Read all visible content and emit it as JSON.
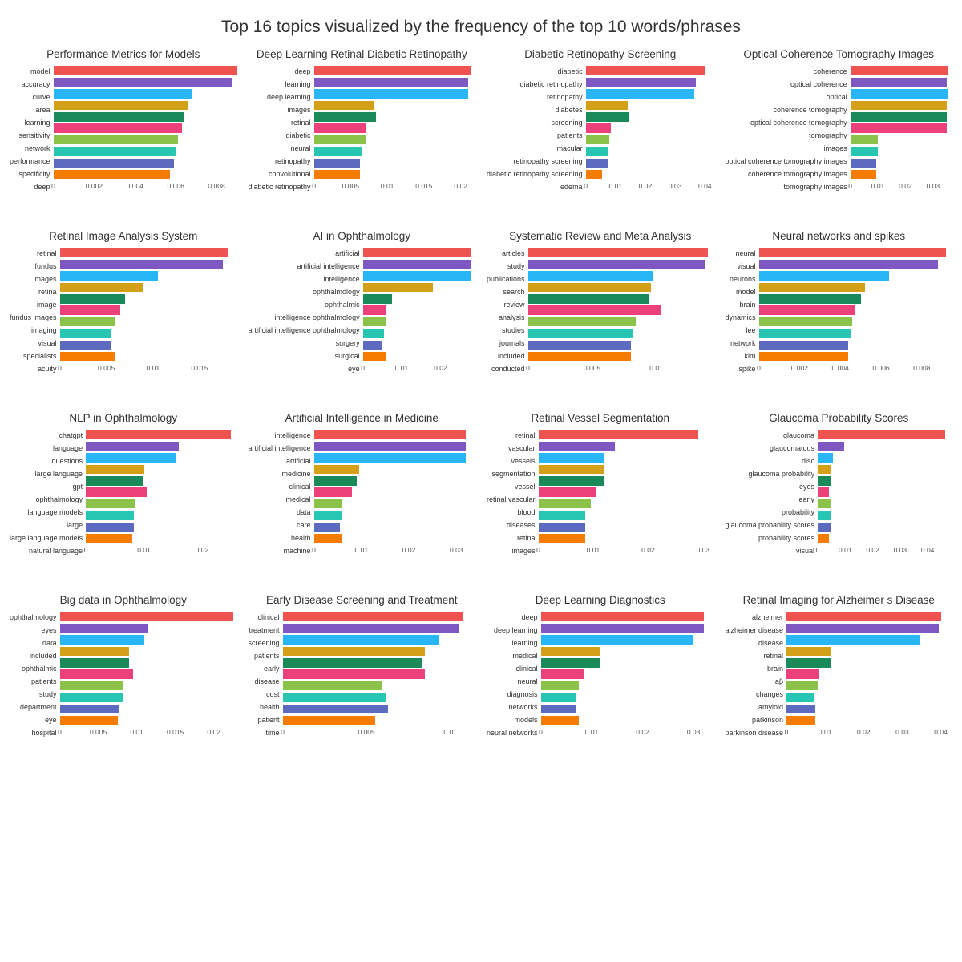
{
  "main_title": "Top 16 topics visualized by the frequency of the top 10 words/phrases",
  "bar_colors": [
    "#ef5350",
    "#7e57c2",
    "#29b6f6",
    "#d4a017",
    "#1b8a5a",
    "#ec407a",
    "#8bc34a",
    "#26c6b2",
    "#5c6bc0",
    "#f57c00"
  ],
  "title_fontsize": 21,
  "panel_title_fontsize": 13.5,
  "ylabel_fontsize": 9,
  "xtick_fontsize": 8.5,
  "background_color": "#ffffff",
  "text_color": "#333333",
  "axis_tick_color": "#555555",
  "grid_columns": 4,
  "grid_rows": 4,
  "panels": [
    {
      "title": "Performance Metrics for Models",
      "xmax": 0.009,
      "xtick_values": [
        0,
        0.002,
        0.004,
        0.006,
        0.008
      ],
      "xtick_labels": [
        "0",
        "0.002",
        "0.004",
        "0.006",
        "0.008"
      ],
      "labels": [
        "model",
        "accuracy",
        "curve",
        "area",
        "learning",
        "sensitivity",
        "network",
        "performance",
        "specificity",
        "deep"
      ],
      "values": [
        0.009,
        0.0088,
        0.0068,
        0.0066,
        0.0064,
        0.0063,
        0.0061,
        0.006,
        0.0059,
        0.0057
      ]
    },
    {
      "title": "Deep Learning Retinal Diabetic Retinopathy",
      "xmax": 0.022,
      "xtick_values": [
        0,
        0.005,
        0.01,
        0.015,
        0.02
      ],
      "xtick_labels": [
        "0",
        "0.005",
        "0.01",
        "0.015",
        "0.02"
      ],
      "labels": [
        "deep",
        "learning",
        "deep learning",
        "images",
        "retinal",
        "diabetic",
        "neural",
        "retinopathy",
        "convolutional",
        "diabetic retinopathy"
      ],
      "values": [
        0.0215,
        0.021,
        0.021,
        0.0082,
        0.0085,
        0.0072,
        0.007,
        0.0065,
        0.0063,
        0.0063
      ]
    },
    {
      "title": "Diabetic Retinopathy Screening",
      "xmax": 0.043,
      "xtick_values": [
        0,
        0.01,
        0.02,
        0.03,
        0.04
      ],
      "xtick_labels": [
        "0",
        "0.01",
        "0.02",
        "0.03",
        "0.04"
      ],
      "labels": [
        "diabetic",
        "diabetic retinopathy",
        "retinopathy",
        "diabetes",
        "screening",
        "patients",
        "macular",
        "retinopathy screening",
        "diabetic retinopathy screening",
        "edema"
      ],
      "values": [
        0.04,
        0.037,
        0.0365,
        0.014,
        0.0145,
        0.0085,
        0.008,
        0.0075,
        0.0075,
        0.0055
      ]
    },
    {
      "title": "Optical Coherence Tomography Images",
      "xmax": 0.037,
      "xtick_values": [
        0,
        0.01,
        0.02,
        0.03
      ],
      "xtick_labels": [
        "0",
        "0.01",
        "0.02",
        "0.03"
      ],
      "labels": [
        "coherence",
        "optical coherence",
        "optical",
        "coherence tomography",
        "optical coherence tomography",
        "tomography",
        "images",
        "optical coherence tomography images",
        "coherence tomography images",
        "tomography images"
      ],
      "values": [
        0.0355,
        0.035,
        0.0352,
        0.035,
        0.035,
        0.035,
        0.01,
        0.01,
        0.0095,
        0.0095
      ]
    },
    {
      "title": "Retinal Image Analysis System",
      "xmax": 0.019,
      "xtick_values": [
        0,
        0.005,
        0.01,
        0.015
      ],
      "xtick_labels": [
        "0",
        "0.005",
        "0.01",
        "0.015"
      ],
      "labels": [
        "retinal",
        "fundus",
        "images",
        "retina",
        "image",
        "fundus images",
        "imaging",
        "visual",
        "specialists",
        "acuity"
      ],
      "values": [
        0.018,
        0.0175,
        0.0105,
        0.009,
        0.007,
        0.0065,
        0.006,
        0.0055,
        0.0055,
        0.006
      ]
    },
    {
      "title": "AI in Ophthalmology",
      "xmax": 0.029,
      "xtick_values": [
        0,
        0.01,
        0.02
      ],
      "xtick_labels": [
        "0",
        "0.01",
        "0.02"
      ],
      "labels": [
        "artificial",
        "artificial intelligence",
        "intelligence",
        "ophthalmology",
        "ophthalmic",
        "intelligence ophthalmology",
        "artificial intelligence ophthalmology",
        "surgery",
        "surgical",
        "eye"
      ],
      "values": [
        0.028,
        0.0278,
        0.0278,
        0.018,
        0.0075,
        0.006,
        0.0058,
        0.0055,
        0.005,
        0.0058
      ]
    },
    {
      "title": "Systematic Review and Meta Analysis",
      "xmax": 0.0145,
      "xtick_values": [
        0,
        0.005,
        0.01
      ],
      "xtick_labels": [
        "0",
        "0.005",
        "0.01"
      ],
      "labels": [
        "articles",
        "study",
        "publications",
        "search",
        "review",
        "analysis",
        "studies",
        "journals",
        "included",
        "conducted"
      ],
      "values": [
        0.014,
        0.0138,
        0.0098,
        0.0096,
        0.0094,
        0.0104,
        0.0084,
        0.0082,
        0.008,
        0.008
      ]
    },
    {
      "title": "Neural networks and spikes",
      "xmax": 0.0095,
      "xtick_values": [
        0,
        0.002,
        0.004,
        0.006,
        0.008
      ],
      "xtick_labels": [
        "0",
        "0.002",
        "0.004",
        "0.006",
        "0.008"
      ],
      "labels": [
        "neural",
        "visual",
        "neurons",
        "model",
        "brain",
        "dynamics",
        "lee",
        "network",
        "kim",
        "spike"
      ],
      "values": [
        0.0092,
        0.0088,
        0.0064,
        0.0052,
        0.005,
        0.0047,
        0.0046,
        0.0045,
        0.0044,
        0.0044
      ]
    },
    {
      "title": "NLP in Ophthalmology",
      "xmax": 0.026,
      "xtick_values": [
        0,
        0.01,
        0.02
      ],
      "xtick_labels": [
        "0",
        "0.01",
        "0.02"
      ],
      "labels": [
        "chatgpt",
        "language",
        "questions",
        "large language",
        "gpt",
        "ophthalmology",
        "language models",
        "large",
        "large language models",
        "natural language"
      ],
      "values": [
        0.025,
        0.016,
        0.0155,
        0.01,
        0.0098,
        0.0105,
        0.0085,
        0.0082,
        0.0082,
        0.008
      ]
    },
    {
      "title": "Artificial Intelligence in Medicine",
      "xmax": 0.034,
      "xtick_values": [
        0,
        0.01,
        0.02,
        0.03
      ],
      "xtick_labels": [
        "0",
        "0.01",
        "0.02",
        "0.03"
      ],
      "labels": [
        "intelligence",
        "artificial intelligence",
        "artificial",
        "medicine",
        "clinical",
        "medical",
        "data",
        "care",
        "health",
        "machine"
      ],
      "values": [
        0.032,
        0.032,
        0.032,
        0.0095,
        0.009,
        0.008,
        0.006,
        0.0058,
        0.0055,
        0.006
      ]
    },
    {
      "title": "Retinal Vessel Segmentation",
      "xmax": 0.032,
      "xtick_values": [
        0,
        0.01,
        0.02,
        0.03
      ],
      "xtick_labels": [
        "0",
        "0.01",
        "0.02",
        "0.03"
      ],
      "labels": [
        "retinal",
        "vascular",
        "vessels",
        "segmentation",
        "vessel",
        "retinal vascular",
        "blood",
        "diseases",
        "retina",
        "images"
      ],
      "values": [
        0.0292,
        0.014,
        0.012,
        0.012,
        0.012,
        0.0105,
        0.0095,
        0.0085,
        0.0085,
        0.0085
      ]
    },
    {
      "title": "Glaucoma Probability Scores",
      "xmax": 0.049,
      "xtick_values": [
        0,
        0.01,
        0.02,
        0.03,
        0.04
      ],
      "xtick_labels": [
        "0",
        "0.01",
        "0.02",
        "0.03",
        "0.04"
      ],
      "labels": [
        "glaucoma",
        "glaucomatous",
        "disc",
        "glaucoma probability",
        "eyes",
        "early",
        "probability",
        "glaucoma probability scores",
        "probability scores",
        "visual"
      ],
      "values": [
        0.0465,
        0.0095,
        0.0055,
        0.005,
        0.005,
        0.0042,
        0.005,
        0.005,
        0.005,
        0.0042
      ]
    },
    {
      "title": "Big data in Ophthalmology",
      "xmax": 0.023,
      "xtick_values": [
        0,
        0.005,
        0.01,
        0.015,
        0.02
      ],
      "xtick_labels": [
        "0",
        "0.005",
        "0.01",
        "0.015",
        "0.02"
      ],
      "labels": [
        "ophthalmology",
        "eyes",
        "data",
        "included",
        "ophthalmic",
        "patients",
        "study",
        "department",
        "eye",
        "hospital"
      ],
      "values": [
        0.0225,
        0.0115,
        0.011,
        0.009,
        0.009,
        0.0095,
        0.0082,
        0.0082,
        0.0078,
        0.0075
      ]
    },
    {
      "title": "Early Disease Screening and Treatment",
      "xmax": 0.0115,
      "xtick_values": [
        0,
        0.005,
        0.01
      ],
      "xtick_labels": [
        "0",
        "0.005",
        "0.01"
      ],
      "labels": [
        "clinical",
        "treatment",
        "screening",
        "patients",
        "early",
        "disease",
        "cost",
        "health",
        "patient",
        "time"
      ],
      "values": [
        0.0108,
        0.0105,
        0.0093,
        0.0085,
        0.0083,
        0.0085,
        0.0059,
        0.0062,
        0.0063,
        0.0055
      ]
    },
    {
      "title": "Deep Learning Diagnostics",
      "xmax": 0.034,
      "xtick_values": [
        0,
        0.01,
        0.02,
        0.03
      ],
      "xtick_labels": [
        "0",
        "0.01",
        "0.02",
        "0.03"
      ],
      "labels": [
        "deep",
        "deep learning",
        "learning",
        "medical",
        "clinical",
        "neural",
        "diagnosis",
        "networks",
        "models",
        "neural networks"
      ],
      "values": [
        0.032,
        0.032,
        0.03,
        0.0115,
        0.0115,
        0.0085,
        0.0075,
        0.007,
        0.007,
        0.0075
      ]
    },
    {
      "title": "Retinal Imaging for Alzheimer s Disease",
      "xmax": 0.043,
      "xtick_values": [
        0,
        0.01,
        0.02,
        0.03,
        0.04
      ],
      "xtick_labels": [
        "0",
        "0.01",
        "0.02",
        "0.03",
        "0.04"
      ],
      "labels": [
        "alzheimer",
        "alzheimer disease",
        "disease",
        "retinal",
        "brain",
        "aβ",
        "changes",
        "amyloid",
        "parkinson",
        "parkinson disease"
      ],
      "values": [
        0.04,
        0.0395,
        0.0345,
        0.0115,
        0.0115,
        0.0085,
        0.008,
        0.007,
        0.0075,
        0.0075
      ]
    }
  ]
}
